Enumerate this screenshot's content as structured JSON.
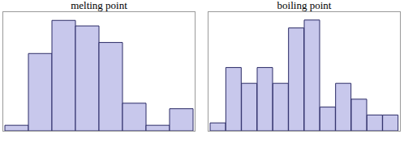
{
  "chart_data": [
    {
      "type": "bar",
      "title": "melting point",
      "categories": [
        null,
        null,
        null,
        null,
        null,
        null,
        null,
        null
      ],
      "values": [
        1,
        14,
        20,
        19,
        16,
        5,
        1,
        4
      ],
      "color": "#c8c8ec",
      "ylim": [
        0,
        21.5
      ],
      "yticks": [],
      "grid": false,
      "tick_labels": false
    },
    {
      "type": "bar",
      "title": "boiling point",
      "categories": [
        null,
        null,
        null,
        null,
        null,
        null,
        null,
        null,
        null,
        null,
        null,
        null
      ],
      "values": [
        1,
        8,
        6,
        8,
        6,
        13,
        14,
        3,
        6,
        4,
        2,
        2
      ],
      "color": "#c8c8ec",
      "ylim": [
        0,
        15
      ],
      "yticks": [],
      "grid": false,
      "tick_labels": false
    }
  ]
}
